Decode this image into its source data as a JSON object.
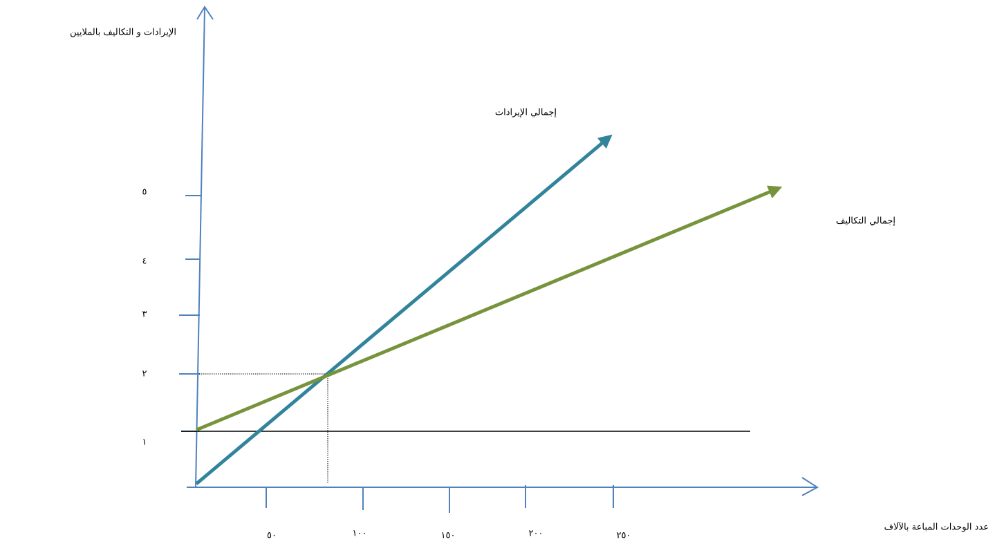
{
  "y_axis": {
    "label": "الإيرادات و التكاليف بالملايين",
    "ticks": [
      "٥",
      "٤",
      "٣",
      "٢",
      "١"
    ]
  },
  "x_axis": {
    "label": "عدد الوحدات المباعة بالآلاف",
    "ticks": [
      "٥٠",
      "١٠٠",
      "١٥٠",
      "٢٠٠",
      "٢٥٠"
    ]
  },
  "lines": [
    {
      "label": "إجمالي الإيرادات"
    },
    {
      "label": "إجمالي التكاليف"
    }
  ]
}
